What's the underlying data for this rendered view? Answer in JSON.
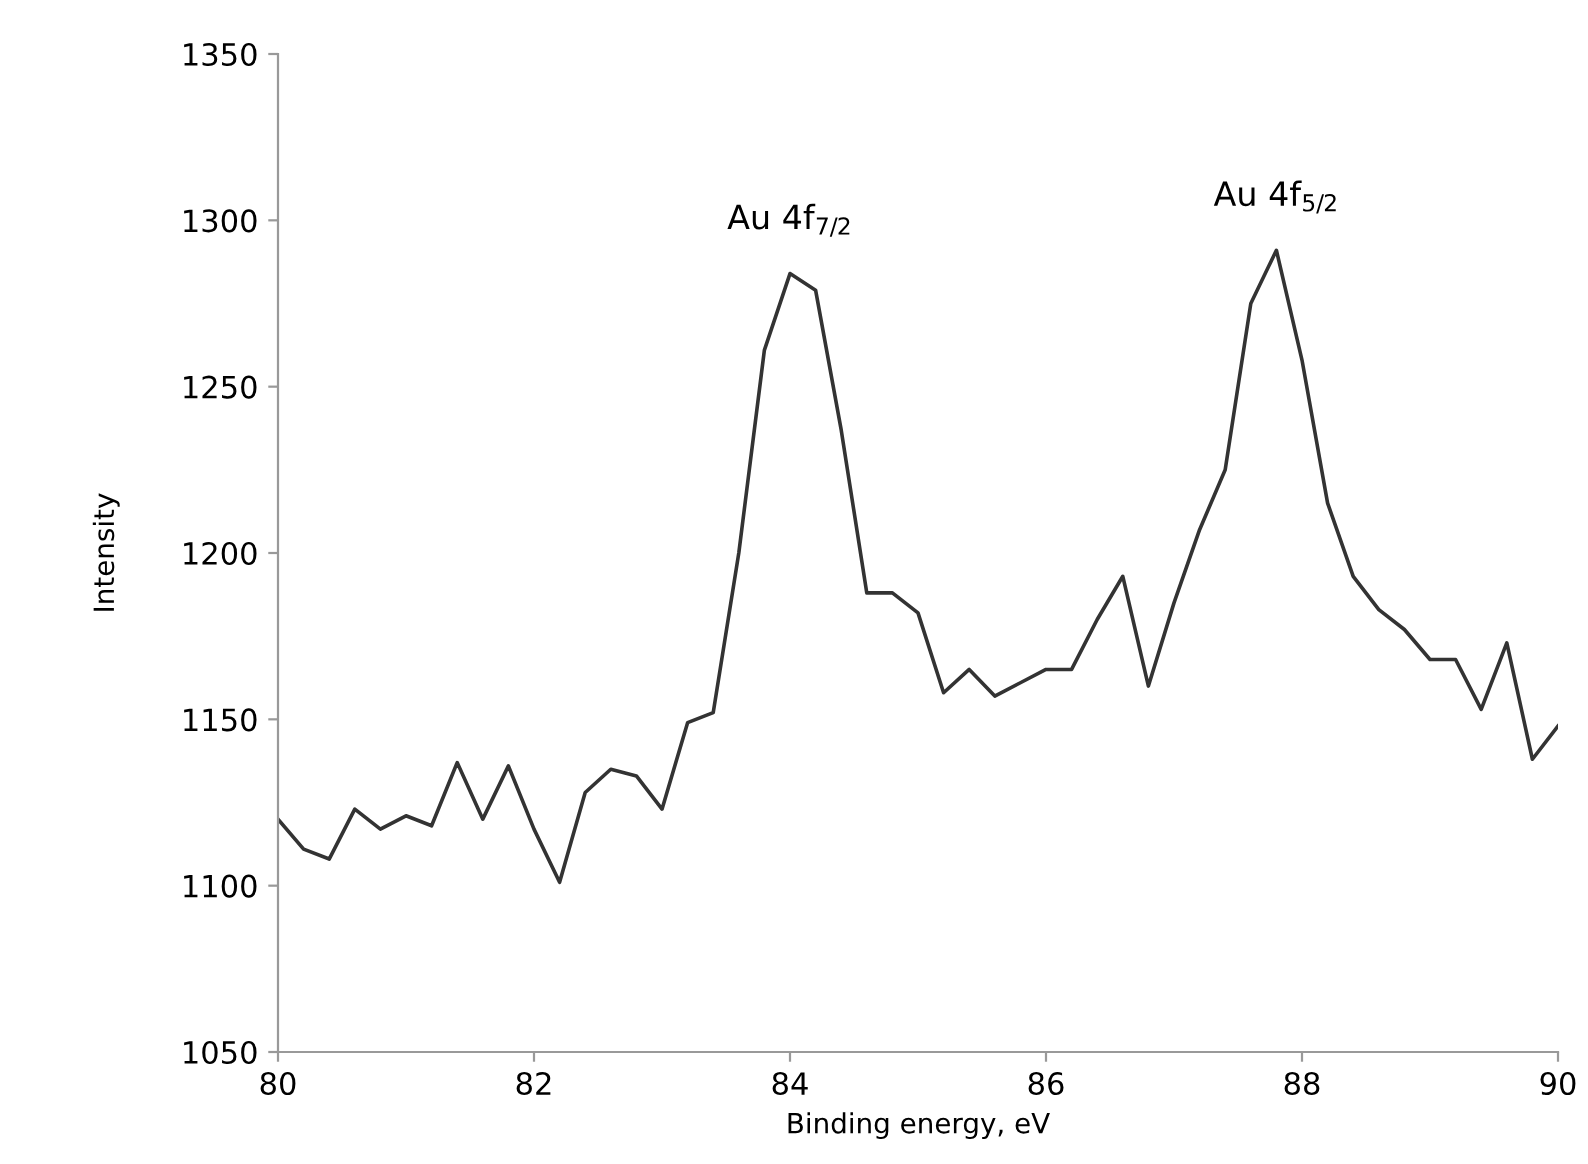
{
  "chart_data": {
    "type": "line",
    "xlabel": "Binding energy, eV",
    "ylabel": "Intensity",
    "x": [
      80.0,
      80.2,
      80.4,
      80.6,
      80.8,
      81.0,
      81.2,
      81.4,
      81.6,
      81.8,
      82.0,
      82.2,
      82.4,
      82.6,
      82.8,
      83.0,
      83.2,
      83.4,
      83.6,
      83.8,
      84.0,
      84.2,
      84.4,
      84.6,
      84.8,
      85.0,
      85.2,
      85.4,
      85.6,
      85.8,
      86.0,
      86.2,
      86.4,
      86.6,
      86.8,
      87.0,
      87.2,
      87.4,
      87.6,
      87.8,
      88.0,
      88.2,
      88.4,
      88.6,
      88.8,
      89.0,
      89.2,
      89.4,
      89.6,
      89.8,
      90.0
    ],
    "series": [
      {
        "color": "#333333",
        "values": [
          1120,
          1111,
          1108,
          1123,
          1117,
          1121,
          1118,
          1137,
          1120,
          1136,
          1117,
          1101,
          1128,
          1135,
          1133,
          1123,
          1149,
          1152,
          1200,
          1261,
          1284,
          1279,
          1237,
          1188,
          1188,
          1182,
          1158,
          1165,
          1157,
          1161,
          1165,
          1165,
          1180,
          1193,
          1160,
          1185,
          1207,
          1225,
          1275,
          1291,
          1258,
          1215,
          1193,
          1183,
          1177,
          1168,
          1168,
          1153,
          1173,
          1138,
          1148
        ]
      }
    ],
    "annotations": [
      {
        "text": "Au 4f$_{7/2}$",
        "x": 84.0,
        "y": 1284
      },
      {
        "text": "Au 4f$_{5/2}$",
        "x": 87.8,
        "y": 1291
      }
    ],
    "xlim": [
      80,
      90
    ],
    "ylim": [
      1050,
      1350
    ],
    "xticks": [
      80,
      82,
      84,
      86,
      88,
      90
    ],
    "yticks": [
      1050,
      1100,
      1150,
      1200,
      1250,
      1300,
      1350
    ],
    "marker": "none",
    "line_style": "solid"
  }
}
